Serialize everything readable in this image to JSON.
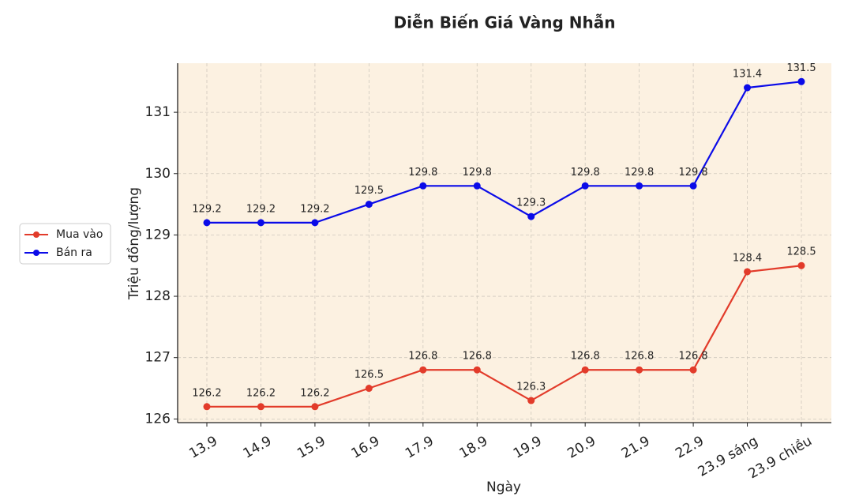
{
  "chart_data": {
    "type": "line",
    "title": "Diễn Biến Giá Vàng Nhẫn",
    "x_label": "Ngày",
    "y_label": "Triệu đồng/lượng",
    "categories": [
      "13.9",
      "14.9",
      "15.9",
      "16.9",
      "17.9",
      "18.9",
      "19.9",
      "20.9",
      "21.9",
      "22.9",
      "23.9 sáng",
      "23.9 chiều"
    ],
    "series": [
      {
        "name": "Mua vào",
        "color": "#e23b2a",
        "values": [
          126.2,
          126.2,
          126.2,
          126.5,
          126.8,
          126.8,
          126.3,
          126.8,
          126.8,
          126.8,
          128.4,
          128.5
        ]
      },
      {
        "name": "Bán ra",
        "color": "#0b0be8",
        "values": [
          129.2,
          129.2,
          129.2,
          129.5,
          129.8,
          129.8,
          129.3,
          129.8,
          129.8,
          129.8,
          131.4,
          131.5
        ]
      }
    ],
    "ylim": [
      125.94,
      131.8
    ],
    "yticks": [
      126,
      127,
      128,
      129,
      130,
      131
    ],
    "grid": true,
    "legend": "left",
    "background": "#fcf1e1"
  }
}
